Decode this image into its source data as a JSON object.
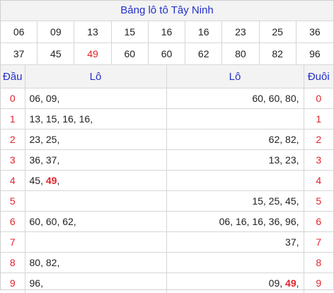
{
  "title": "Bảng lô tô Tây Ninh",
  "numbers_row1": [
    "06",
    "09",
    "13",
    "15",
    "16",
    "16",
    "23",
    "25",
    "36"
  ],
  "numbers_row2": [
    "37",
    "45",
    "49",
    "60",
    "60",
    "62",
    "80",
    "82",
    "96"
  ],
  "highlight_number": "49",
  "headers": {
    "dau": "Đầu",
    "lo_left": "Lô",
    "lo_right": "Lô",
    "duoi": "Đuôi"
  },
  "rows": [
    {
      "dau": "0",
      "left": [
        "06",
        "09"
      ],
      "right": [
        "60",
        "60",
        "80"
      ],
      "duoi": "0"
    },
    {
      "dau": "1",
      "left": [
        "13",
        "15",
        "16",
        "16"
      ],
      "right": [],
      "duoi": "1"
    },
    {
      "dau": "2",
      "left": [
        "23",
        "25"
      ],
      "right": [
        "62",
        "82"
      ],
      "duoi": "2"
    },
    {
      "dau": "3",
      "left": [
        "36",
        "37"
      ],
      "right": [
        "13",
        "23"
      ],
      "duoi": "3"
    },
    {
      "dau": "4",
      "left": [
        "45",
        "49"
      ],
      "right": [],
      "duoi": "4"
    },
    {
      "dau": "5",
      "left": [],
      "right": [
        "15",
        "25",
        "45"
      ],
      "duoi": "5"
    },
    {
      "dau": "6",
      "left": [
        "60",
        "60",
        "62"
      ],
      "right": [
        "06",
        "16",
        "16",
        "36",
        "96"
      ],
      "duoi": "6"
    },
    {
      "dau": "7",
      "left": [],
      "right": [
        "37"
      ],
      "duoi": "7"
    },
    {
      "dau": "8",
      "left": [
        "80",
        "82"
      ],
      "right": [],
      "duoi": "8"
    },
    {
      "dau": "9",
      "left": [
        "96"
      ],
      "right": [
        "09",
        "49"
      ],
      "duoi": "9"
    }
  ],
  "colors": {
    "accent_blue": "#2430c8",
    "highlight_red": "#e0242c",
    "header_bg": "#f3f3f3"
  }
}
